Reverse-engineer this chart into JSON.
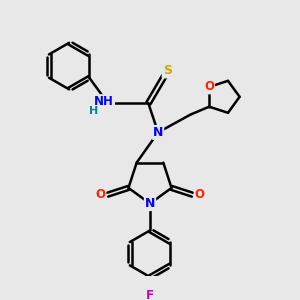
{
  "background_color": "#e8e8e8",
  "atom_colors": {
    "N": "#0000ff",
    "O": "#ff2200",
    "S": "#ccaa00",
    "F": "#cc00cc",
    "H": "#008888",
    "C": "#000000"
  },
  "bond_color": "#000000",
  "bond_width": 1.8,
  "fig_width": 3.0,
  "fig_height": 3.0,
  "dpi": 100
}
